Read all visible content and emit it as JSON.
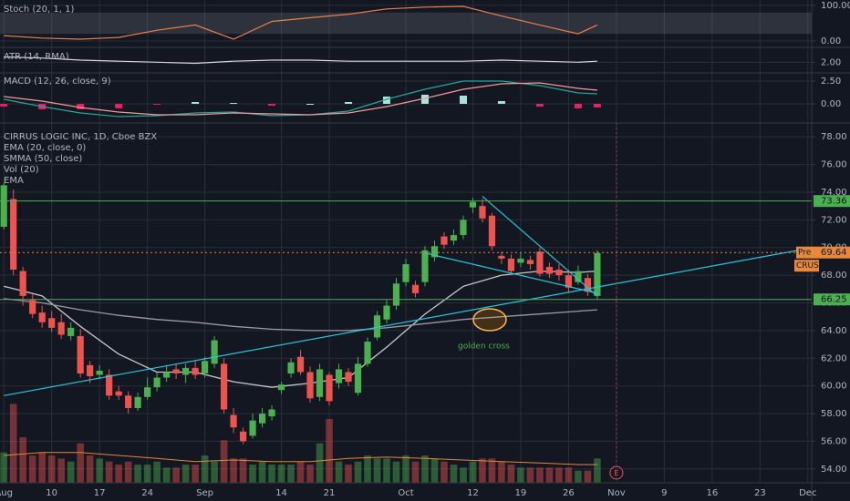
{
  "chart_data": [
    {
      "type": "candlestick",
      "title": "CIRRUS LOGIC INC, 1D, Cboe BZX",
      "xlim": [
        -0.4,
        84.4
      ],
      "xticks": [
        {
          "value": 0,
          "label": "Aug"
        },
        {
          "value": 5,
          "label": "10"
        },
        {
          "value": 10,
          "label": "17"
        },
        {
          "value": 15,
          "label": "24"
        },
        {
          "value": 21,
          "label": "Sep"
        },
        {
          "value": 29,
          "label": "14"
        },
        {
          "value": 34,
          "label": "21"
        },
        {
          "value": 42,
          "label": "Oct"
        },
        {
          "value": 49,
          "label": "12"
        },
        {
          "value": 54,
          "label": "19"
        },
        {
          "value": 59,
          "label": "26"
        },
        {
          "value": 64,
          "label": "Nov"
        },
        {
          "value": 69,
          "label": "9"
        },
        {
          "value": 74,
          "label": "16"
        },
        {
          "value": 79,
          "label": "23"
        },
        {
          "value": 84,
          "label": "Dec"
        }
      ],
      "ylim": [
        53.0,
        79.0
      ],
      "yticks": [
        {
          "value": 54,
          "label": "54.00"
        },
        {
          "value": 56,
          "label": "56.00"
        },
        {
          "value": 58,
          "label": "58.00"
        },
        {
          "value": 60,
          "label": "60.00"
        },
        {
          "value": 62,
          "label": "62.00"
        },
        {
          "value": 64,
          "label": "64.00"
        },
        {
          "value": 66,
          "label": "66.00"
        },
        {
          "value": 68,
          "label": "68.00"
        },
        {
          "value": 70,
          "label": "70.00"
        },
        {
          "value": 72,
          "label": "72.00"
        },
        {
          "value": 74,
          "label": "74.00"
        },
        {
          "value": 76,
          "label": "76.00"
        },
        {
          "value": 78,
          "label": "78.00"
        }
      ],
      "grid": true,
      "colors": {
        "up": "#4caf50",
        "down": "#ef5350"
      },
      "x": [
        0,
        1,
        2,
        3,
        4,
        5,
        6,
        7,
        8,
        9,
        10,
        11,
        12,
        13,
        14,
        15,
        16,
        17,
        18,
        19,
        20,
        21,
        22,
        23,
        24,
        25,
        26,
        27,
        28,
        29,
        30,
        31,
        32,
        33,
        34,
        35,
        36,
        37,
        38,
        39,
        40,
        41,
        42,
        43,
        44,
        45,
        46,
        47,
        48,
        49,
        50,
        51,
        52,
        53,
        54,
        55,
        56,
        57,
        58,
        59,
        60,
        61,
        62
      ],
      "open": [
        71.5,
        73.5,
        68.3,
        66.2,
        65.3,
        64.9,
        64.6,
        63.6,
        63.6,
        61.5,
        60.8,
        60.8,
        59.6,
        59.3,
        58.4,
        59.2,
        59.9,
        60.6,
        61.2,
        60.8,
        61.3,
        60.9,
        61.6,
        61.6,
        57.9,
        56.7,
        56.4,
        57.3,
        57.8,
        59.7,
        60.9,
        62.1,
        61.0,
        59.2,
        60.8,
        60.2,
        61.0,
        59.5,
        61.6,
        63.5,
        64.8,
        65.8,
        67.5,
        67.3,
        67.5,
        69.3,
        70.8,
        70.5,
        70.9,
        72.9,
        73.0,
        72.3,
        69.4,
        69.2,
        68.9,
        69.1,
        69.7,
        68.6,
        68.4,
        68.0,
        67.5,
        67.8,
        66.5
      ],
      "high": [
        74.7,
        74.2,
        68.6,
        66.6,
        65.8,
        65.4,
        65.2,
        64.6,
        64.1,
        61.8,
        61.5,
        61.2,
        60.0,
        59.6,
        59.5,
        60.6,
        61.0,
        61.5,
        61.6,
        61.6,
        61.8,
        62.1,
        63.6,
        62.0,
        58.4,
        57.0,
        58.0,
        58.4,
        58.6,
        60.3,
        62.0,
        62.6,
        61.4,
        61.6,
        61.0,
        61.6,
        61.3,
        62.1,
        63.5,
        65.4,
        66.2,
        67.8,
        69.2,
        67.6,
        70.1,
        70.5,
        71.1,
        71.3,
        72.3,
        73.6,
        73.5,
        72.5,
        69.7,
        69.5,
        69.6,
        69.4,
        70.0,
        68.9,
        68.8,
        68.4,
        68.7,
        68.1,
        69.8
      ],
      "low": [
        71.3,
        68.0,
        65.8,
        64.9,
        64.2,
        63.9,
        63.4,
        63.3,
        60.6,
        60.2,
        60.5,
        59.0,
        59.0,
        58.0,
        58.2,
        59.0,
        59.6,
        60.3,
        60.5,
        60.2,
        60.5,
        60.6,
        61.3,
        58.0,
        56.6,
        55.8,
        56.2,
        57.0,
        57.5,
        59.4,
        60.6,
        60.8,
        58.8,
        58.9,
        58.6,
        59.8,
        60.0,
        59.3,
        61.4,
        63.3,
        64.5,
        65.5,
        67.2,
        66.4,
        67.2,
        69.0,
        69.9,
        70.2,
        70.6,
        72.5,
        71.8,
        69.8,
        68.8,
        68.0,
        68.6,
        68.4,
        67.9,
        67.8,
        67.6,
        66.8,
        67.3,
        66.5,
        66.2
      ],
      "close": [
        74.5,
        68.4,
        66.5,
        65.2,
        64.6,
        64.2,
        63.7,
        64.2,
        60.9,
        60.7,
        61.1,
        59.3,
        59.3,
        58.4,
        59.2,
        59.9,
        60.6,
        61.0,
        60.9,
        61.3,
        60.8,
        61.8,
        63.3,
        58.3,
        57.0,
        56.0,
        57.5,
        58.0,
        58.3,
        60.1,
        61.7,
        61.0,
        59.1,
        61.2,
        58.9,
        61.2,
        60.3,
        61.6,
        63.2,
        65.1,
        65.8,
        67.4,
        68.8,
        66.7,
        69.8,
        70.1,
        70.2,
        70.9,
        72.0,
        73.3,
        72.1,
        70.1,
        69.2,
        68.3,
        69.2,
        68.8,
        68.1,
        68.1,
        68.0,
        67.1,
        68.3,
        66.8,
        69.6
      ],
      "overlays": [
        {
          "name": "EMA (20, close, 0)",
          "color": "#c8c8c8",
          "x": [
            0,
            4,
            8,
            12,
            16,
            20,
            24,
            28,
            32,
            36,
            40,
            44,
            48,
            52,
            56,
            60,
            62
          ],
          "values": [
            67.2,
            66.5,
            64.3,
            62.3,
            61.0,
            61.0,
            60.3,
            59.9,
            60.2,
            60.6,
            62.8,
            65.2,
            67.2,
            68.0,
            68.3,
            68.2,
            68.3
          ]
        },
        {
          "name": "SMMA (50, close)",
          "color": "#9a9aa6",
          "x": [
            0,
            4,
            8,
            12,
            16,
            20,
            24,
            28,
            32,
            36,
            40,
            44,
            48,
            52,
            56,
            60,
            62
          ],
          "values": [
            66.3,
            66.0,
            65.5,
            65.1,
            64.8,
            64.6,
            64.3,
            64.1,
            64.0,
            64.0,
            64.2,
            64.5,
            64.8,
            65.0,
            65.2,
            65.4,
            65.5
          ]
        }
      ],
      "volume": {
        "name": "Vol (20)",
        "ylim": [
          0,
          3
        ],
        "values": [
          1.0,
          2.6,
          1.5,
          0.9,
          1.0,
          0.9,
          0.8,
          0.7,
          1.3,
          0.9,
          0.8,
          0.7,
          0.6,
          0.7,
          0.6,
          0.6,
          0.7,
          0.5,
          0.5,
          0.6,
          0.6,
          0.9,
          0.7,
          1.4,
          0.8,
          0.8,
          0.6,
          0.7,
          0.6,
          0.6,
          0.6,
          0.7,
          0.6,
          1.3,
          2.1,
          0.7,
          0.6,
          0.7,
          0.9,
          0.8,
          0.8,
          0.7,
          0.9,
          0.7,
          0.9,
          0.8,
          0.7,
          0.6,
          0.5,
          0.7,
          0.8,
          0.8,
          0.7,
          0.6,
          0.5,
          0.5,
          0.5,
          0.5,
          0.5,
          0.5,
          0.4,
          0.4,
          0.8
        ]
      },
      "volume_ema": {
        "name": "EMA",
        "color": "#e0883a",
        "x": [
          0,
          4,
          8,
          12,
          16,
          20,
          24,
          28,
          32,
          36,
          40,
          44,
          48,
          52,
          56,
          60,
          62
        ],
        "values": [
          0.9,
          1.0,
          1.0,
          0.9,
          0.8,
          0.7,
          0.75,
          0.7,
          0.7,
          0.8,
          0.85,
          0.8,
          0.75,
          0.7,
          0.65,
          0.6,
          0.6
        ]
      },
      "levels": [
        {
          "value": 73.36,
          "color": "#4caf50"
        },
        {
          "value": 66.25,
          "color": "#4caf50"
        },
        {
          "value": 69.64,
          "color": "#e8883a",
          "tag": "Pre",
          "symbol": "CRUS"
        }
      ],
      "trendlines": {
        "color": "#26c6da",
        "lines": [
          {
            "x": [
              0,
              83
            ],
            "y": [
              59.3,
              69.8
            ]
          },
          {
            "x": [
              44,
              62
            ],
            "y": [
              69.6,
              66.7
            ]
          },
          {
            "x": [
              50,
              62
            ],
            "y": [
              73.7,
              66.5
            ]
          }
        ]
      },
      "annotation": "golden cross",
      "earnings": {
        "label": "E",
        "x": 64
      }
    },
    {
      "type": "line",
      "title": "Stoch (20, 1, 1)",
      "ylim": [
        -18,
        115
      ],
      "yticks": [
        {
          "value": 100,
          "label": "100.00"
        },
        {
          "value": 0,
          "label": "0.00"
        }
      ],
      "band": [
        20,
        80
      ],
      "series": [
        {
          "color": "#e8804a",
          "x": [
            0,
            4,
            8,
            12,
            16,
            20,
            24,
            28,
            32,
            36,
            40,
            44,
            48,
            52,
            56,
            60,
            62
          ],
          "values": [
            15,
            8,
            5,
            10,
            30,
            45,
            5,
            55,
            65,
            75,
            90,
            95,
            97,
            70,
            45,
            20,
            45
          ]
        }
      ]
    },
    {
      "type": "line",
      "title": "ATR (14, RMA)",
      "ylim": [
        1.5,
        2.7
      ],
      "yticks": [
        {
          "value": 2,
          "label": "2.00"
        }
      ],
      "series": [
        {
          "color": "#d8d8d8",
          "x": [
            0,
            4,
            8,
            12,
            16,
            20,
            24,
            28,
            32,
            36,
            40,
            44,
            48,
            52,
            56,
            60,
            62
          ],
          "values": [
            2.25,
            2.2,
            2.1,
            2.05,
            2.0,
            1.95,
            2.05,
            2.1,
            2.1,
            2.05,
            2.05,
            2.05,
            2.05,
            2.1,
            2.05,
            2.0,
            2.05
          ]
        }
      ]
    },
    {
      "type": "macd",
      "title": "MACD (12, 26, close, 9)",
      "ylim": [
        -2.1,
        3.4
      ],
      "yticks": [
        {
          "value": 2.5,
          "label": "2.50"
        },
        {
          "value": 0,
          "label": "0.00"
        }
      ],
      "hist_colors": {
        "up": "#a7e3dc",
        "down": "#e91e63"
      },
      "x": [
        0,
        4,
        8,
        12,
        16,
        20,
        24,
        28,
        32,
        36,
        40,
        44,
        48,
        52,
        56,
        60,
        62
      ],
      "histogram": [
        -0.3,
        -0.6,
        -0.6,
        -0.5,
        -0.1,
        0.2,
        0.1,
        -0.2,
        0,
        0.2,
        0.8,
        1.0,
        0.9,
        0.3,
        -0.3,
        -0.5,
        -0.4
      ],
      "series": [
        {
          "color": "#26a69a",
          "values": [
            0.5,
            -0.3,
            -1.0,
            -1.4,
            -1.3,
            -1.0,
            -0.9,
            -1.3,
            -1.2,
            -0.8,
            0.5,
            1.6,
            2.5,
            2.5,
            2.0,
            1.2,
            1.1
          ]
        },
        {
          "color": "#ef9a9a",
          "values": [
            0.8,
            0.3,
            -0.4,
            -0.9,
            -1.2,
            -1.2,
            -1.0,
            -1.1,
            -1.2,
            -1.0,
            -0.3,
            0.6,
            1.6,
            2.2,
            2.3,
            1.7,
            1.5
          ]
        }
      ]
    }
  ]
}
